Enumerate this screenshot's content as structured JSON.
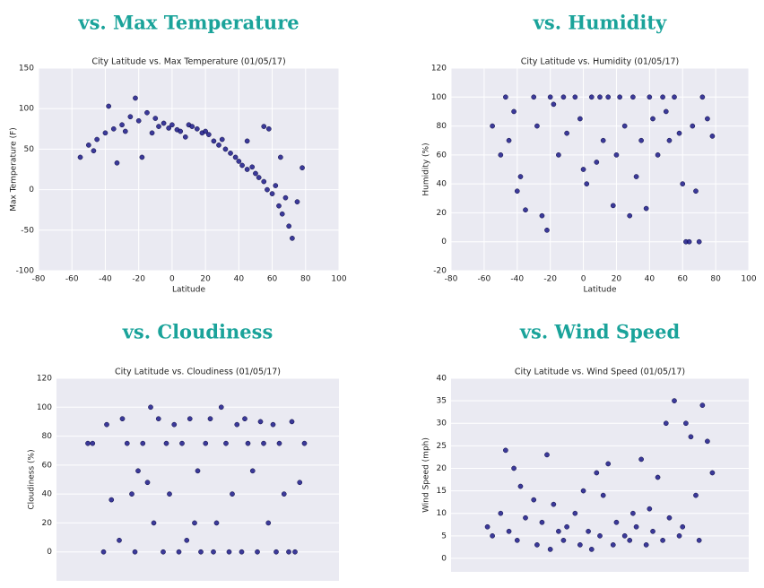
{
  "chart_data": [
    {
      "type": "scatter",
      "heading": "vs. Max Temperature",
      "title": "City Latitude vs. Max Temperature (01/05/17)",
      "xlabel": "Latitude",
      "ylabel": "Max Temperature (F)",
      "color": "#1c1a8a",
      "xlim": [
        -80,
        100
      ],
      "ylim": [
        -100,
        150
      ],
      "xticks": [
        -80,
        -60,
        -40,
        -20,
        0,
        20,
        40,
        60,
        80,
        100
      ],
      "yticks": [
        -100,
        -50,
        0,
        50,
        100,
        150
      ],
      "x": [
        -55,
        -50,
        -47,
        -45,
        -40,
        -38,
        -35,
        -33,
        -30,
        -28,
        -25,
        -22,
        -20,
        -18,
        -15,
        -12,
        -10,
        -8,
        -5,
        -2,
        0,
        3,
        5,
        8,
        10,
        12,
        15,
        18,
        20,
        22,
        25,
        28,
        30,
        32,
        35,
        38,
        40,
        42,
        45,
        48,
        50,
        52,
        55,
        57,
        60,
        62,
        64,
        66,
        68,
        70,
        72,
        75,
        78,
        55,
        58,
        45,
        65
      ],
      "y": [
        40,
        55,
        48,
        62,
        70,
        103,
        75,
        33,
        80,
        72,
        90,
        113,
        85,
        40,
        95,
        70,
        88,
        78,
        82,
        76,
        80,
        74,
        72,
        65,
        80,
        78,
        75,
        70,
        72,
        68,
        60,
        55,
        62,
        50,
        45,
        40,
        35,
        30,
        25,
        28,
        20,
        15,
        10,
        0,
        -5,
        5,
        -20,
        -30,
        -10,
        -45,
        -60,
        -15,
        27,
        78,
        75,
        60,
        40
      ]
    },
    {
      "type": "scatter",
      "heading": "vs. Humidity",
      "title": "City Latitude vs. Humidity (01/05/17)",
      "xlabel": "Latitude",
      "ylabel": "Humidity (%)",
      "color": "#1c1a8a",
      "xlim": [
        -80,
        100
      ],
      "ylim": [
        -20,
        120
      ],
      "xticks": [
        -80,
        -60,
        -40,
        -20,
        0,
        20,
        40,
        60,
        80,
        100
      ],
      "yticks": [
        -20,
        0,
        20,
        40,
        60,
        80,
        100,
        120
      ],
      "x": [
        -55,
        -50,
        -47,
        -45,
        -42,
        -40,
        -38,
        -35,
        -30,
        -28,
        -25,
        -22,
        -20,
        -18,
        -15,
        -12,
        -10,
        -5,
        -2,
        0,
        2,
        5,
        8,
        10,
        12,
        15,
        18,
        20,
        22,
        25,
        28,
        30,
        32,
        35,
        38,
        40,
        42,
        45,
        48,
        50,
        52,
        55,
        58,
        60,
        62,
        64,
        66,
        68,
        70,
        72,
        75,
        78
      ],
      "y": [
        80,
        60,
        100,
        70,
        90,
        35,
        45,
        22,
        100,
        80,
        18,
        8,
        100,
        95,
        60,
        100,
        75,
        100,
        85,
        50,
        40,
        100,
        55,
        100,
        70,
        100,
        25,
        60,
        100,
        80,
        18,
        100,
        45,
        70,
        23,
        100,
        85,
        60,
        100,
        90,
        70,
        100,
        75,
        40,
        0,
        0,
        80,
        35,
        0,
        100,
        85,
        73
      ]
    },
    {
      "type": "scatter",
      "heading": "vs. Cloudiness",
      "title": "City Latitude vs. Cloudiness (01/05/17)",
      "ylabel": "Cloudiness (%)",
      "color": "#1c1a8a",
      "xlim": [
        -80,
        100
      ],
      "ylim": [
        -20,
        120
      ],
      "yticks": [
        0,
        20,
        40,
        60,
        80,
        100,
        120
      ],
      "x": [
        -60,
        -57,
        -50,
        -48,
        -45,
        -40,
        -38,
        -35,
        -32,
        -30,
        -28,
        -25,
        -22,
        -20,
        -18,
        -15,
        -12,
        -10,
        -8,
        -5,
        -2,
        0,
        3,
        5,
        8,
        10,
        12,
        15,
        18,
        20,
        22,
        25,
        28,
        30,
        32,
        35,
        38,
        40,
        42,
        45,
        48,
        50,
        52,
        55,
        58,
        60,
        62,
        65,
        68,
        70,
        72,
        75,
        78
      ],
      "y": [
        75,
        75,
        0,
        88,
        36,
        8,
        92,
        75,
        40,
        0,
        56,
        75,
        48,
        100,
        20,
        92,
        0,
        75,
        40,
        88,
        0,
        75,
        8,
        92,
        20,
        56,
        0,
        75,
        92,
        0,
        20,
        100,
        75,
        0,
        40,
        88,
        0,
        92,
        75,
        56,
        0,
        90,
        75,
        20,
        88,
        0,
        75,
        40,
        0,
        90,
        0,
        48,
        75
      ]
    },
    {
      "type": "scatter",
      "heading": "vs. Wind Speed",
      "title": "City Latitude vs. Wind Speed (01/05/17)",
      "ylabel": "Wind Speed (mph)",
      "color": "#1c1a8a",
      "xlim": [
        -80,
        100
      ],
      "ylim": [
        -3,
        40
      ],
      "yticks": [
        0,
        5,
        10,
        15,
        20,
        25,
        30,
        35,
        40
      ],
      "x": [
        -58,
        -55,
        -50,
        -47,
        -45,
        -42,
        -40,
        -38,
        -35,
        -30,
        -28,
        -25,
        -22,
        -20,
        -18,
        -15,
        -12,
        -10,
        -5,
        -2,
        0,
        3,
        5,
        8,
        10,
        12,
        15,
        18,
        20,
        25,
        28,
        30,
        32,
        35,
        38,
        40,
        42,
        45,
        48,
        50,
        52,
        55,
        58,
        60,
        62,
        65,
        68,
        70,
        72,
        75,
        78
      ],
      "y": [
        7,
        5,
        10,
        24,
        6,
        20,
        4,
        16,
        9,
        13,
        3,
        8,
        23,
        2,
        12,
        6,
        4,
        7,
        10,
        3,
        15,
        6,
        2,
        19,
        5,
        14,
        21,
        3,
        8,
        5,
        4,
        10,
        7,
        22,
        3,
        11,
        6,
        18,
        4,
        30,
        9,
        35,
        5,
        7,
        30,
        27,
        14,
        4,
        34,
        26,
        19
      ]
    }
  ]
}
